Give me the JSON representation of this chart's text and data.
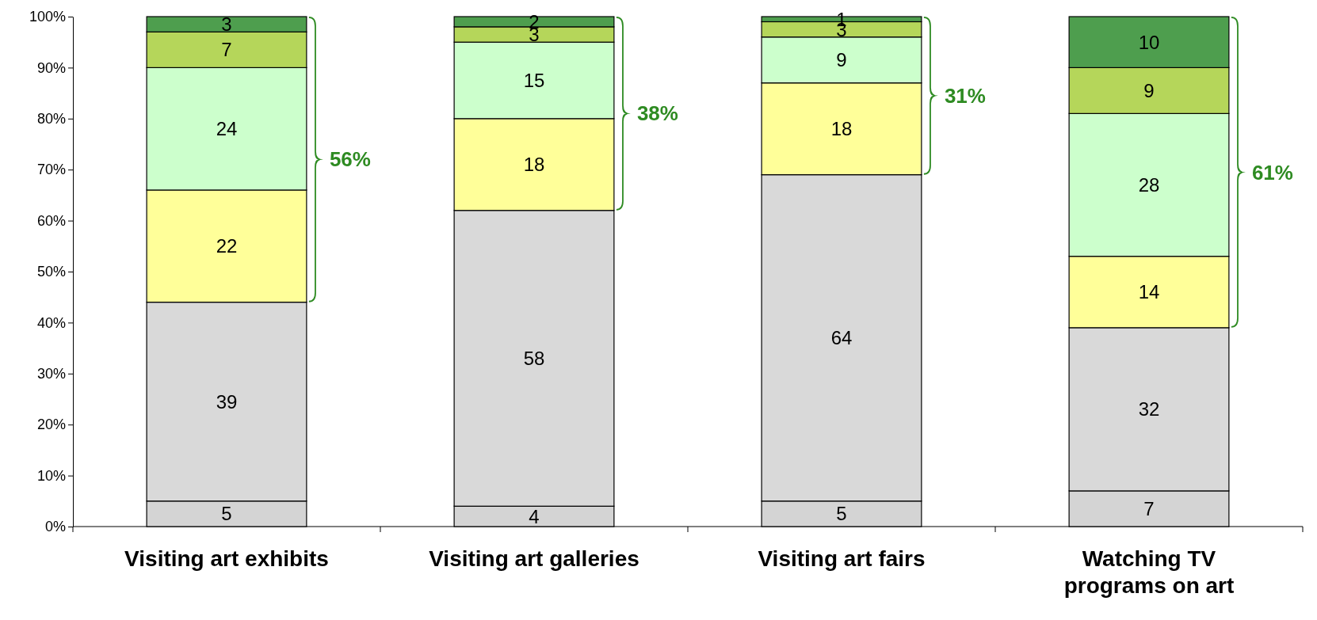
{
  "chart_data": {
    "type": "bar",
    "stacked": true,
    "categories": [
      "Visiting art exhibits",
      "Visiting art galleries",
      "Visiting art fairs",
      "Watching TV programs on art"
    ],
    "series": [
      {
        "color": "#d4d4d4",
        "values": [
          5,
          4,
          5,
          7
        ]
      },
      {
        "color": "#d9d9d9",
        "values": [
          39,
          58,
          64,
          32
        ]
      },
      {
        "color": "#ffff99",
        "values": [
          22,
          18,
          18,
          14
        ]
      },
      {
        "color": "#ccffcc",
        "values": [
          24,
          15,
          9,
          28
        ]
      },
      {
        "color": "#b5d65a",
        "values": [
          7,
          3,
          3,
          9
        ]
      },
      {
        "color": "#4e9e4e",
        "values": [
          3,
          2,
          1,
          10
        ]
      }
    ],
    "ylim": [
      0,
      100
    ],
    "yticks": [
      {
        "value": 0,
        "label": "0%"
      },
      {
        "value": 10,
        "label": "10%"
      },
      {
        "value": 20,
        "label": "20%"
      },
      {
        "value": 30,
        "label": "30%"
      },
      {
        "value": 40,
        "label": "40%"
      },
      {
        "value": 50,
        "label": "50%"
      },
      {
        "value": 60,
        "label": "60%"
      },
      {
        "value": 70,
        "label": "70%"
      },
      {
        "value": 80,
        "label": "80%"
      },
      {
        "value": 90,
        "label": "90%"
      },
      {
        "value": 100,
        "label": "100%"
      }
    ],
    "data_labels": true,
    "grid": false,
    "annotations": [
      "56%",
      "38%",
      "31%",
      "61%"
    ]
  }
}
